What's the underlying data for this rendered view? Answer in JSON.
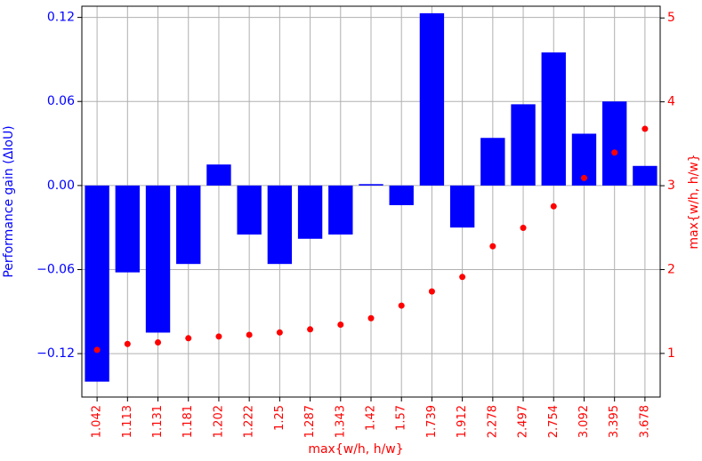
{
  "chart_data": {
    "type": "bar",
    "xlabel": "max{w/h, h/w}",
    "ylabel": "Performance gain (ΔIoU)",
    "y2label": "max{w/h, h/w}",
    "categories": [
      "1.042",
      "1.113",
      "1.131",
      "1.181",
      "1.202",
      "1.222",
      "1.25",
      "1.287",
      "1.343",
      "1.42",
      "1.57",
      "1.739",
      "1.912",
      "2.278",
      "2.497",
      "2.754",
      "3.092",
      "3.395",
      "3.678"
    ],
    "series": [
      {
        "type": "bar",
        "color": "#0000ff",
        "values": [
          -0.14,
          -0.062,
          -0.105,
          -0.056,
          0.015,
          -0.035,
          -0.056,
          -0.038,
          -0.035,
          0.001,
          -0.014,
          0.123,
          -0.03,
          0.034,
          0.058,
          0.095,
          0.037,
          0.06,
          0.014
        ]
      },
      {
        "type": "scatter",
        "color": "#ff0000",
        "axis": "y2",
        "values": [
          1.042,
          1.113,
          1.131,
          1.181,
          1.202,
          1.222,
          1.25,
          1.287,
          1.343,
          1.42,
          1.57,
          1.739,
          1.912,
          2.278,
          2.497,
          2.754,
          3.092,
          3.395,
          3.678
        ]
      }
    ],
    "ylim": [
      -0.151,
      0.128
    ],
    "yticks": [
      {
        "value": -0.12,
        "label": "−0.12"
      },
      {
        "value": -0.06,
        "label": "−0.06"
      },
      {
        "value": 0,
        "label": "0.00"
      },
      0.06,
      0.12
    ],
    "y2lim": [
      0.48,
      5.14
    ],
    "y2ticks": [
      1,
      2,
      3,
      4,
      5
    ],
    "grid": true,
    "ycolor": "#0000ff",
    "y2color": "#ff0000",
    "xcolor": "#ff0000"
  }
}
